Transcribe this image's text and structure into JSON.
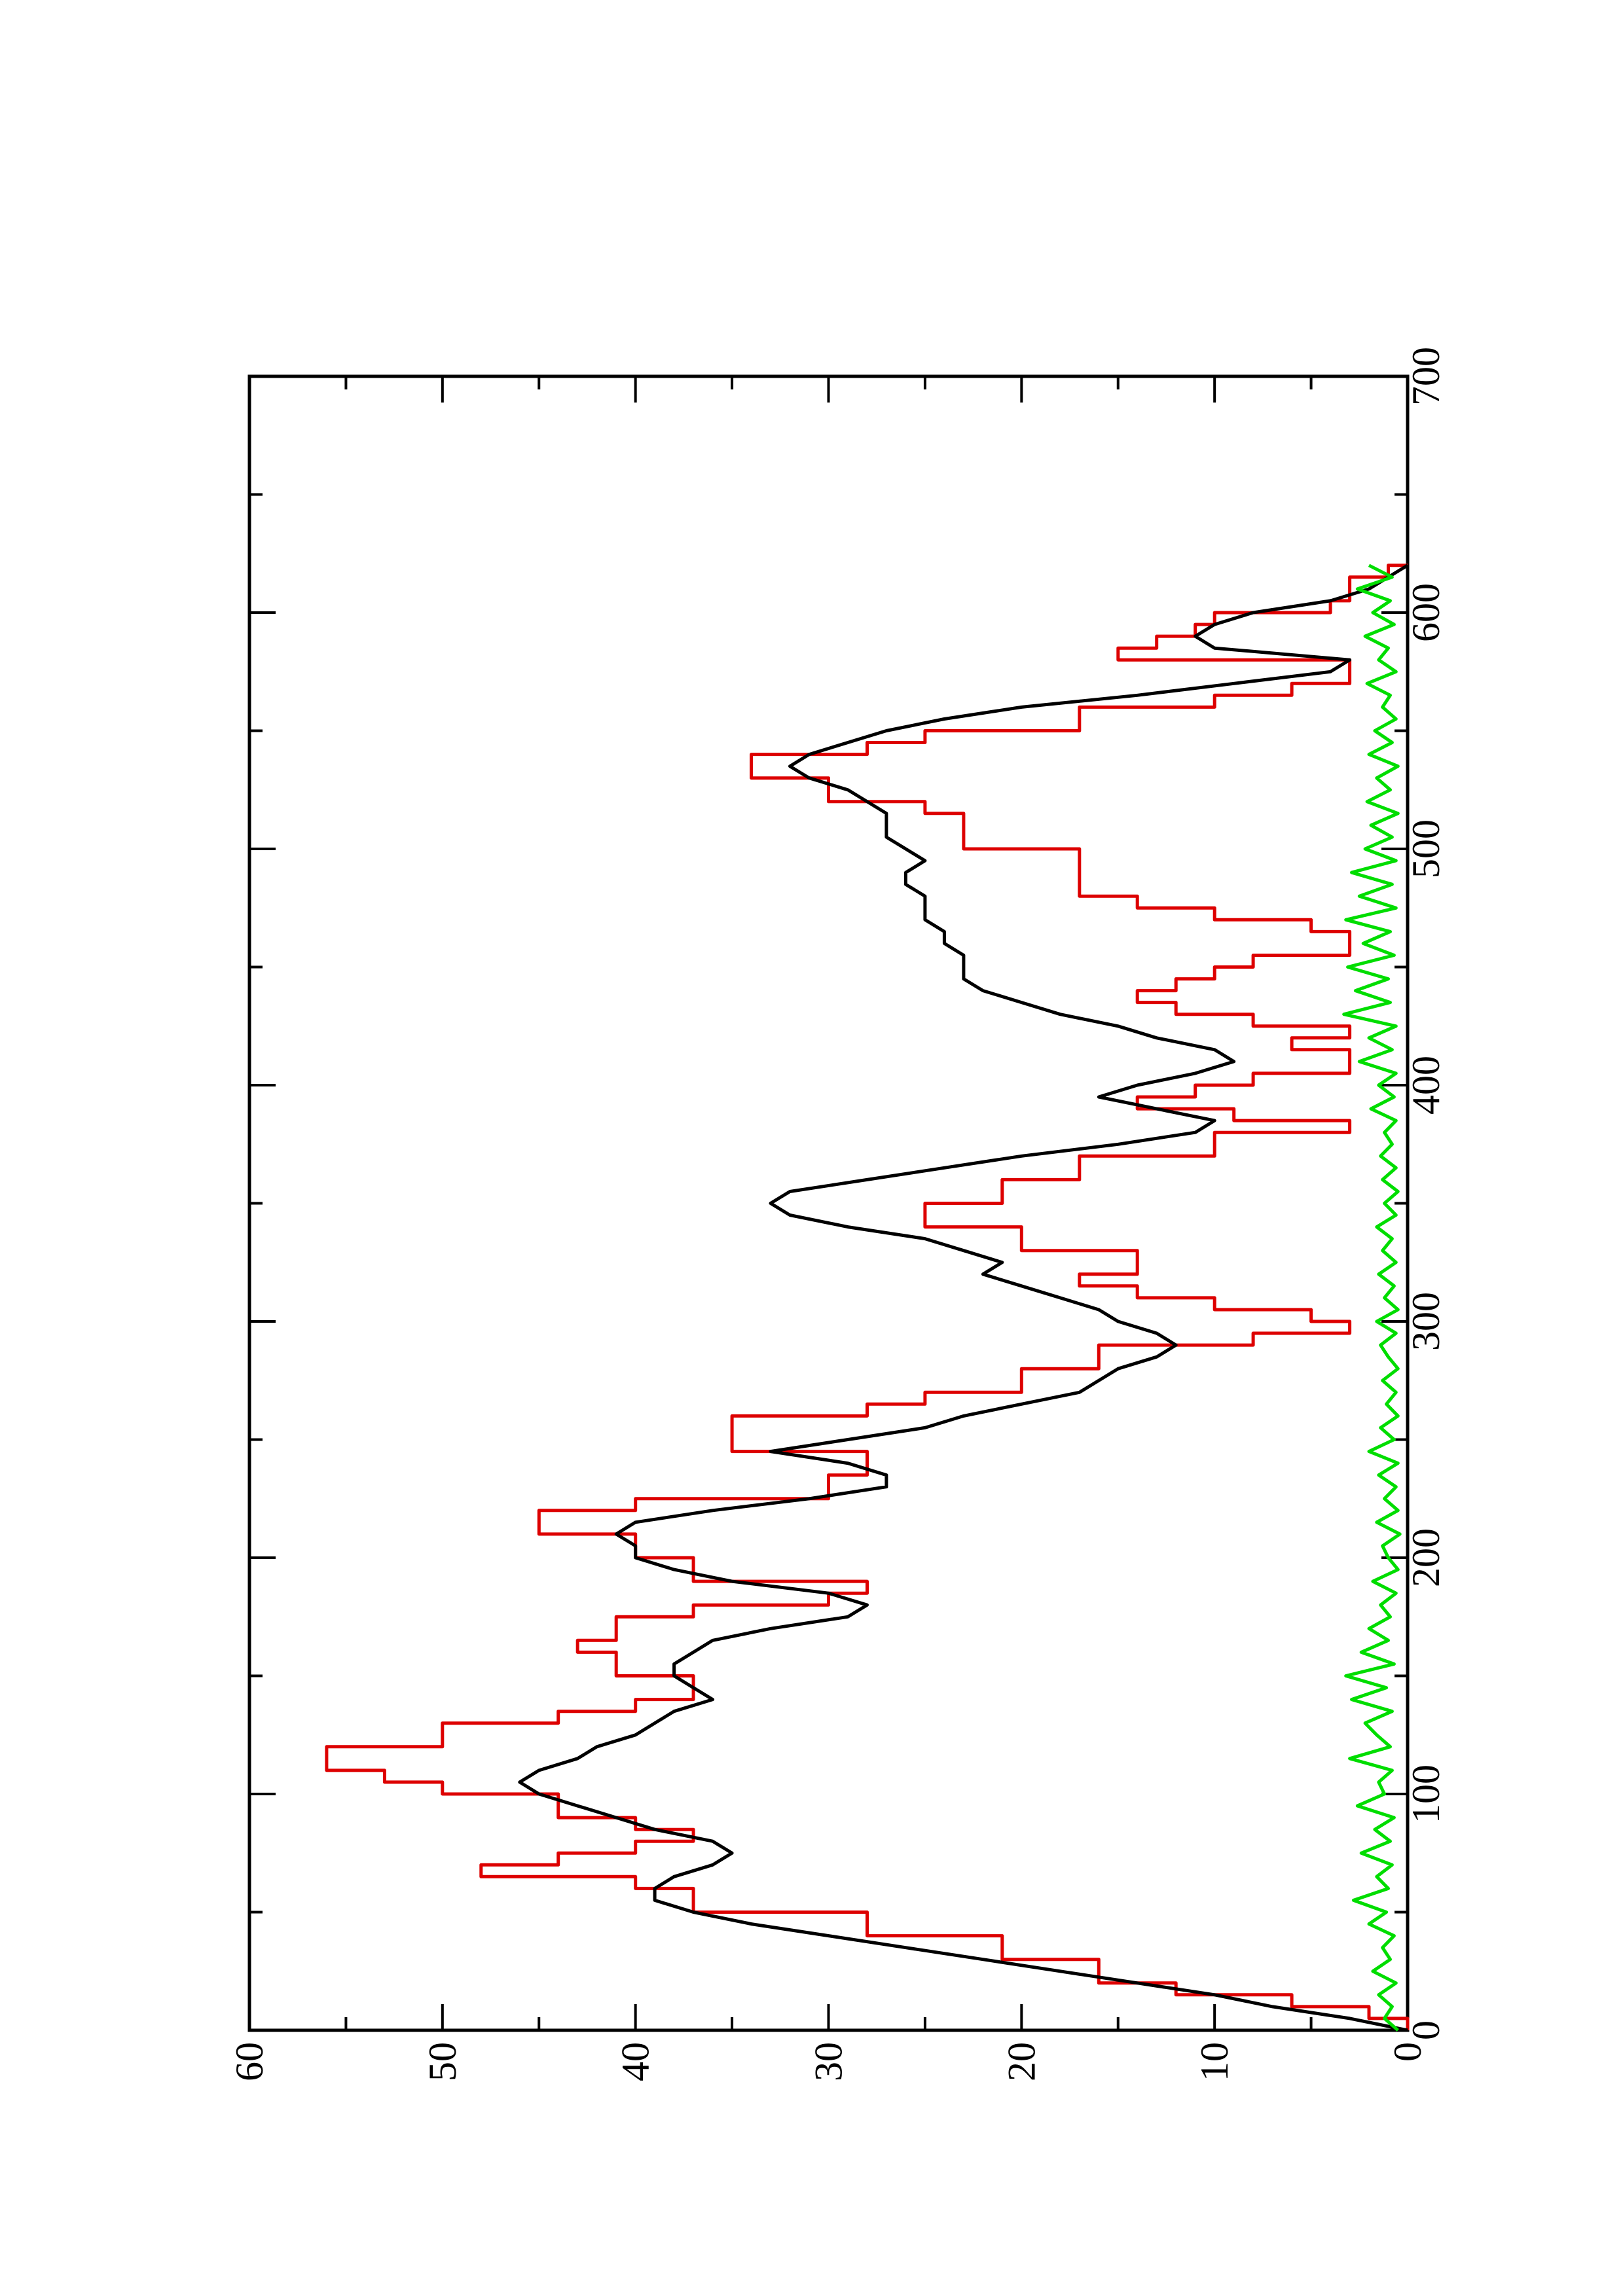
{
  "chart_data": {
    "type": "line",
    "orientation": "rotated-90-clockwise",
    "title": "",
    "xlabel": "",
    "ylabel": "",
    "xlim": [
      0,
      700
    ],
    "ylim": [
      0,
      60
    ],
    "x_ticks_major": [
      0,
      100,
      200,
      300,
      400,
      500,
      600,
      700
    ],
    "x_ticks_minor": [
      50,
      150,
      250,
      350,
      450,
      550,
      650
    ],
    "y_ticks_major": [
      0,
      10,
      20,
      30,
      40,
      50,
      60
    ],
    "y_ticks_minor": [
      5,
      15,
      25,
      35,
      45,
      55
    ],
    "x_tick_labels": [
      "0",
      "100",
      "200",
      "300",
      "400",
      "500",
      "600",
      "700"
    ],
    "y_tick_labels": [
      "0",
      "10",
      "20",
      "30",
      "40",
      "50",
      "60"
    ],
    "grid": false,
    "legend": "none",
    "series": [
      {
        "color": "#dd0000",
        "style": "step",
        "x": [
          0,
          5,
          10,
          15,
          20,
          30,
          40,
          50,
          60,
          65,
          70,
          75,
          80,
          85,
          90,
          100,
          105,
          110,
          115,
          120,
          130,
          135,
          140,
          145,
          150,
          160,
          165,
          175,
          180,
          185,
          190,
          200,
          210,
          215,
          220,
          225,
          235,
          240,
          245,
          250,
          260,
          265,
          270,
          280,
          290,
          295,
          300,
          305,
          310,
          315,
          320,
          325,
          330,
          340,
          345,
          350,
          360,
          370,
          380,
          385,
          390,
          395,
          400,
          405,
          410,
          415,
          420,
          425,
          430,
          435,
          440,
          445,
          450,
          455,
          460,
          465,
          470,
          475,
          480,
          490,
          500,
          510,
          515,
          520,
          530,
          535,
          540,
          545,
          550,
          560,
          565,
          570,
          575,
          580,
          585,
          590,
          595,
          600,
          605,
          610,
          615,
          620
        ],
        "y": [
          0,
          2,
          6,
          12,
          16,
          21,
          28,
          37,
          40,
          48,
          44,
          40,
          37,
          40,
          44,
          50,
          53,
          56,
          56,
          50,
          44,
          40,
          37,
          37,
          41,
          43,
          41,
          37,
          30,
          28,
          37,
          40,
          45,
          45,
          40,
          30,
          28,
          28,
          35,
          35,
          28,
          25,
          20,
          16,
          8,
          3,
          5,
          10,
          14,
          17,
          14,
          14,
          20,
          25,
          25,
          21,
          17,
          10,
          3,
          9,
          14,
          11,
          8,
          3,
          3,
          6,
          3,
          8,
          12,
          14,
          12,
          10,
          8,
          3,
          3,
          5,
          10,
          14,
          17,
          17,
          23,
          23,
          25,
          30,
          34,
          34,
          28,
          25,
          17,
          10,
          6,
          3,
          3,
          15,
          13,
          11,
          10,
          4,
          3,
          3,
          1,
          0
        ]
      },
      {
        "color": "#000000",
        "style": "line",
        "x": [
          0,
          5,
          10,
          15,
          20,
          25,
          30,
          35,
          40,
          45,
          50,
          55,
          60,
          65,
          70,
          75,
          80,
          85,
          90,
          95,
          100,
          105,
          110,
          115,
          120,
          125,
          130,
          135,
          140,
          145,
          150,
          155,
          160,
          165,
          170,
          175,
          180,
          185,
          190,
          195,
          200,
          205,
          210,
          215,
          220,
          225,
          230,
          235,
          240,
          245,
          250,
          255,
          260,
          265,
          270,
          275,
          280,
          285,
          290,
          295,
          300,
          305,
          310,
          315,
          320,
          325,
          330,
          335,
          340,
          345,
          350,
          355,
          360,
          365,
          370,
          375,
          380,
          385,
          390,
          395,
          400,
          405,
          410,
          415,
          420,
          425,
          430,
          435,
          440,
          445,
          450,
          455,
          460,
          465,
          470,
          475,
          480,
          485,
          490,
          495,
          500,
          505,
          510,
          515,
          520,
          525,
          530,
          535,
          540,
          545,
          550,
          555,
          560,
          565,
          570,
          575,
          580,
          585,
          590,
          595,
          600,
          605,
          610,
          615,
          620
        ],
        "y": [
          0,
          3,
          7,
          10,
          14,
          18,
          22,
          26,
          30,
          34,
          37,
          39,
          39,
          38,
          36,
          35,
          36,
          39,
          41,
          43,
          45,
          46,
          45,
          43,
          42,
          40,
          39,
          38,
          36,
          37,
          38,
          38,
          37,
          36,
          33,
          29,
          28,
          30,
          35,
          38,
          40,
          40,
          41,
          40,
          36,
          31,
          27,
          27,
          29,
          33,
          29,
          25,
          23,
          20,
          17,
          16,
          15,
          13,
          12,
          13,
          15,
          16,
          18,
          20,
          22,
          21,
          23,
          25,
          29,
          32,
          33,
          32,
          28,
          24,
          20,
          15,
          11,
          10,
          13,
          16,
          14,
          11,
          9,
          10,
          13,
          15,
          18,
          20,
          22,
          23,
          23,
          23,
          24,
          24,
          25,
          25,
          25,
          26,
          26,
          25,
          26,
          27,
          27,
          27,
          28,
          29,
          31,
          32,
          31,
          29,
          27,
          24,
          20,
          14,
          9,
          4,
          3,
          10,
          11,
          10,
          8,
          4,
          2,
          1,
          0
        ]
      },
      {
        "color": "#00dd00",
        "style": "line",
        "x": [
          0,
          5,
          10,
          15,
          20,
          25,
          30,
          35,
          40,
          45,
          50,
          55,
          60,
          65,
          70,
          75,
          80,
          85,
          90,
          95,
          100,
          105,
          110,
          115,
          120,
          125,
          130,
          135,
          140,
          145,
          150,
          155,
          160,
          165,
          170,
          175,
          180,
          185,
          190,
          195,
          200,
          205,
          210,
          215,
          220,
          225,
          230,
          235,
          240,
          245,
          250,
          255,
          260,
          265,
          270,
          275,
          280,
          285,
          290,
          295,
          300,
          305,
          310,
          315,
          320,
          325,
          330,
          335,
          340,
          345,
          350,
          355,
          360,
          365,
          370,
          375,
          380,
          385,
          390,
          395,
          400,
          405,
          410,
          415,
          420,
          425,
          430,
          435,
          440,
          445,
          450,
          455,
          460,
          465,
          470,
          475,
          480,
          485,
          490,
          495,
          500,
          505,
          510,
          515,
          520,
          525,
          530,
          535,
          540,
          545,
          550,
          555,
          560,
          565,
          570,
          575,
          580,
          585,
          590,
          595,
          600,
          605,
          610,
          615,
          620
        ],
        "y": [
          0.5,
          1.2,
          0.8,
          1.5,
          0.6,
          1.8,
          0.9,
          1.3,
          0.7,
          2.0,
          1.1,
          2.8,
          1.0,
          1.6,
          0.8,
          2.4,
          0.9,
          1.7,
          0.7,
          2.6,
          1.2,
          1.5,
          0.8,
          3.0,
          0.9,
          1.6,
          2.2,
          0.8,
          2.9,
          1.1,
          3.2,
          0.7,
          2.4,
          1.0,
          2.0,
          0.9,
          1.4,
          0.6,
          1.8,
          0.5,
          1.0,
          1.3,
          0.4,
          1.6,
          0.5,
          1.2,
          0.6,
          1.5,
          0.5,
          2.0,
          0.7,
          1.4,
          0.5,
          1.1,
          0.6,
          1.3,
          0.5,
          1.0,
          1.4,
          0.6,
          1.6,
          0.5,
          1.2,
          0.7,
          1.5,
          0.6,
          1.3,
          0.8,
          1.6,
          0.6,
          1.2,
          0.5,
          1.3,
          0.6,
          1.4,
          0.8,
          1.2,
          0.6,
          1.9,
          0.7,
          1.5,
          0.6,
          2.5,
          0.8,
          2.0,
          0.6,
          3.3,
          0.9,
          2.7,
          1.0,
          3.1,
          0.7,
          2.3,
          0.9,
          3.2,
          0.6,
          2.5,
          0.8,
          2.9,
          0.6,
          2.2,
          0.8,
          1.9,
          0.5,
          2.1,
          0.9,
          1.6,
          0.5,
          2.0,
          0.8,
          1.7,
          0.6,
          1.3,
          0.9,
          2.1,
          0.6,
          1.5,
          1.0,
          2.2,
          0.7,
          1.8,
          0.9,
          2.6,
          0.8,
          2.0
        ]
      }
    ]
  }
}
